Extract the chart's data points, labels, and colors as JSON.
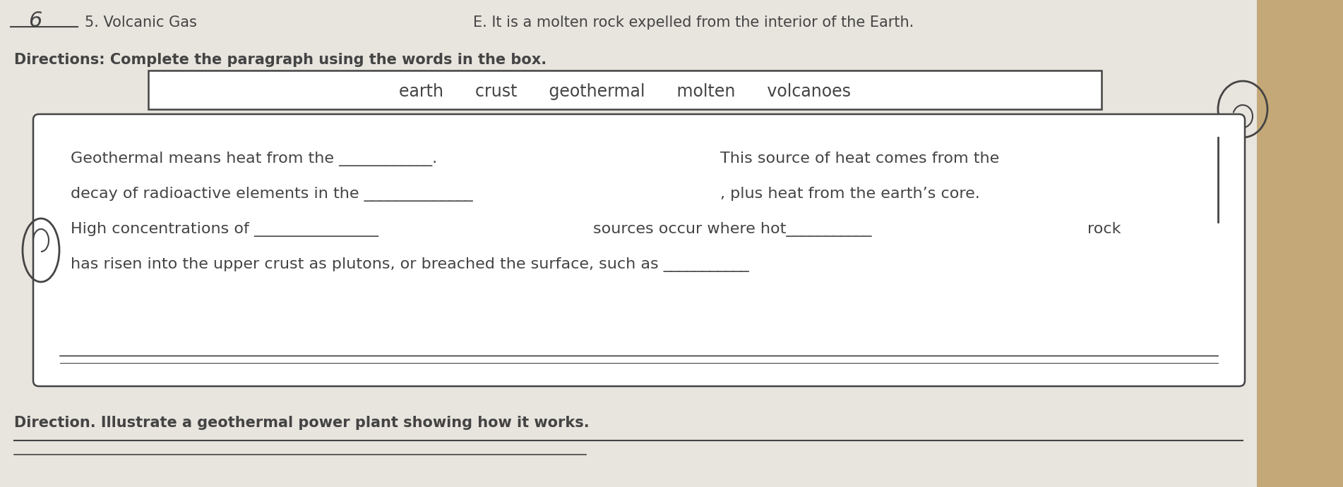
{
  "bg_color": "#c8bfb0",
  "paper_color": "#d4cdc4",
  "scroll_bg": "#e8e4de",
  "right_strip_color": "#c4a878",
  "font_color": "#333333",
  "dark_color": "#444444",
  "title_num": "6",
  "title_item": "5. Volcanic Gas",
  "title_right": "E. It is a molten rock expelled from the interior of the Earth.",
  "directions_label": "Directions: Complete the paragraph using the words in the box.",
  "word_box_words": "earth      crust      geothermal      molten      volcanoes",
  "paragraph_line1a": "Geothermal means heat from the ____________.",
  "paragraph_line1b": "This source of heat comes from the",
  "paragraph_line2a": "decay of radioactive elements in the ______________",
  "paragraph_line2b": ", plus heat from the earth’s core.",
  "paragraph_line3a": "High concentrations of ________________",
  "paragraph_line3b": "sources occur where hot___________",
  "paragraph_line3c": "rock",
  "paragraph_line4": "has risen into the upper crust as plutons, or breached the surface, such as ___________",
  "direction2": "Direction. Illustrate a geothermal power plant showing how it works.",
  "font_size_body": 16,
  "font_size_directions": 15,
  "font_size_title": 15,
  "font_size_wordbox": 17
}
